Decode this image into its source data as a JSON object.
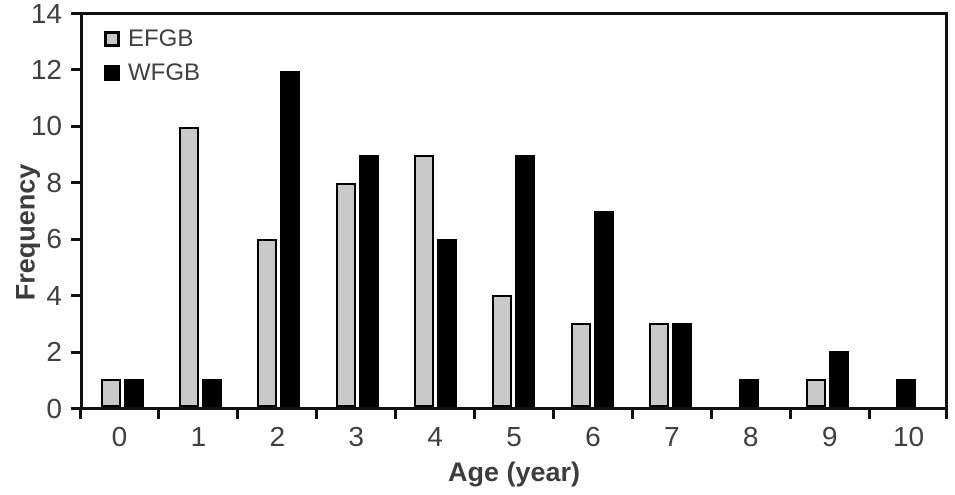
{
  "chart_data": {
    "type": "bar",
    "title": "",
    "xlabel": "Age (year)",
    "ylabel": "Frequency",
    "categories": [
      "0",
      "1",
      "2",
      "3",
      "4",
      "5",
      "6",
      "7",
      "8",
      "9",
      "10"
    ],
    "series": [
      {
        "name": "EFGB",
        "fill": "#c9c9c9",
        "border": "#000000",
        "values": [
          1,
          10,
          6,
          8,
          9,
          4,
          3,
          3,
          0,
          1,
          0
        ]
      },
      {
        "name": "WFGB",
        "fill": "#000000",
        "border": "#000000",
        "values": [
          1,
          1,
          12,
          9,
          6,
          9,
          7,
          3,
          1,
          2,
          1
        ]
      }
    ],
    "ylim": [
      0,
      14
    ],
    "yticks": [
      0,
      2,
      4,
      6,
      8,
      10,
      12,
      14
    ],
    "grid": false,
    "legend_position": "top-left-inside",
    "axis_color": "#111111",
    "text_color": "#404040"
  }
}
